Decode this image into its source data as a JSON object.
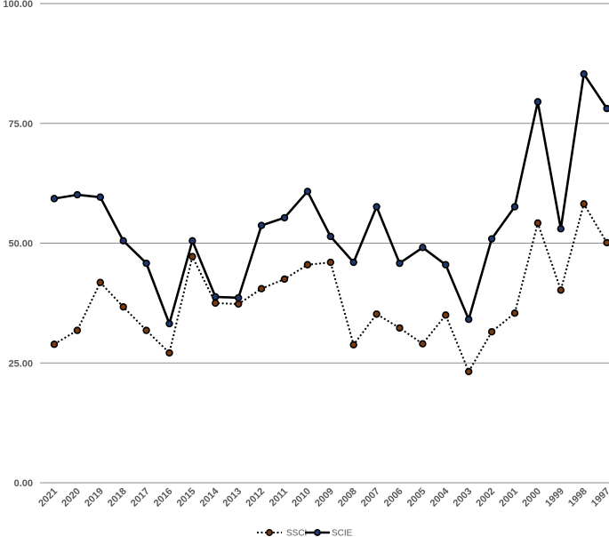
{
  "chart_data": {
    "type": "line",
    "title": "",
    "xlabel": "",
    "ylabel": "",
    "ylim": [
      0,
      100
    ],
    "yticks": [
      "0.00",
      "25.00",
      "50.00",
      "75.00",
      "100.00"
    ],
    "ytick_values": [
      0,
      25,
      50,
      75,
      100
    ],
    "grid": true,
    "legend_position": "bottom",
    "categories": [
      "2021",
      "2020",
      "2019",
      "2018",
      "2017",
      "2016",
      "2015",
      "2014",
      "2013",
      "2012",
      "2011",
      "2010",
      "2009",
      "2008",
      "2007",
      "2006",
      "2005",
      "2004",
      "2003",
      "2002",
      "2001",
      "2000",
      "1999",
      "1998",
      "1997"
    ],
    "series": [
      {
        "name": "SSCI",
        "line_style": "dotted",
        "line_color": "#000000",
        "marker_color": "#7a3b10",
        "values": [
          28.9,
          31.8,
          41.8,
          36.7,
          31.8,
          27.1,
          47.2,
          37.5,
          37.3,
          40.5,
          42.5,
          45.5,
          46.0,
          28.8,
          35.2,
          32.3,
          29.0,
          35.0,
          23.2,
          31.5,
          35.4,
          54.2,
          40.2,
          58.2,
          50.1
        ]
      },
      {
        "name": "SCIE",
        "line_style": "solid",
        "line_color": "#000000",
        "marker_color": "#1f3a6e",
        "values": [
          59.3,
          60.1,
          59.6,
          50.5,
          45.8,
          33.2,
          50.5,
          38.8,
          38.6,
          53.7,
          55.3,
          60.8,
          51.4,
          46.0,
          57.6,
          45.8,
          49.1,
          45.5,
          34.1,
          50.9,
          57.6,
          79.5,
          53.0,
          85.3,
          78.1
        ]
      }
    ]
  }
}
